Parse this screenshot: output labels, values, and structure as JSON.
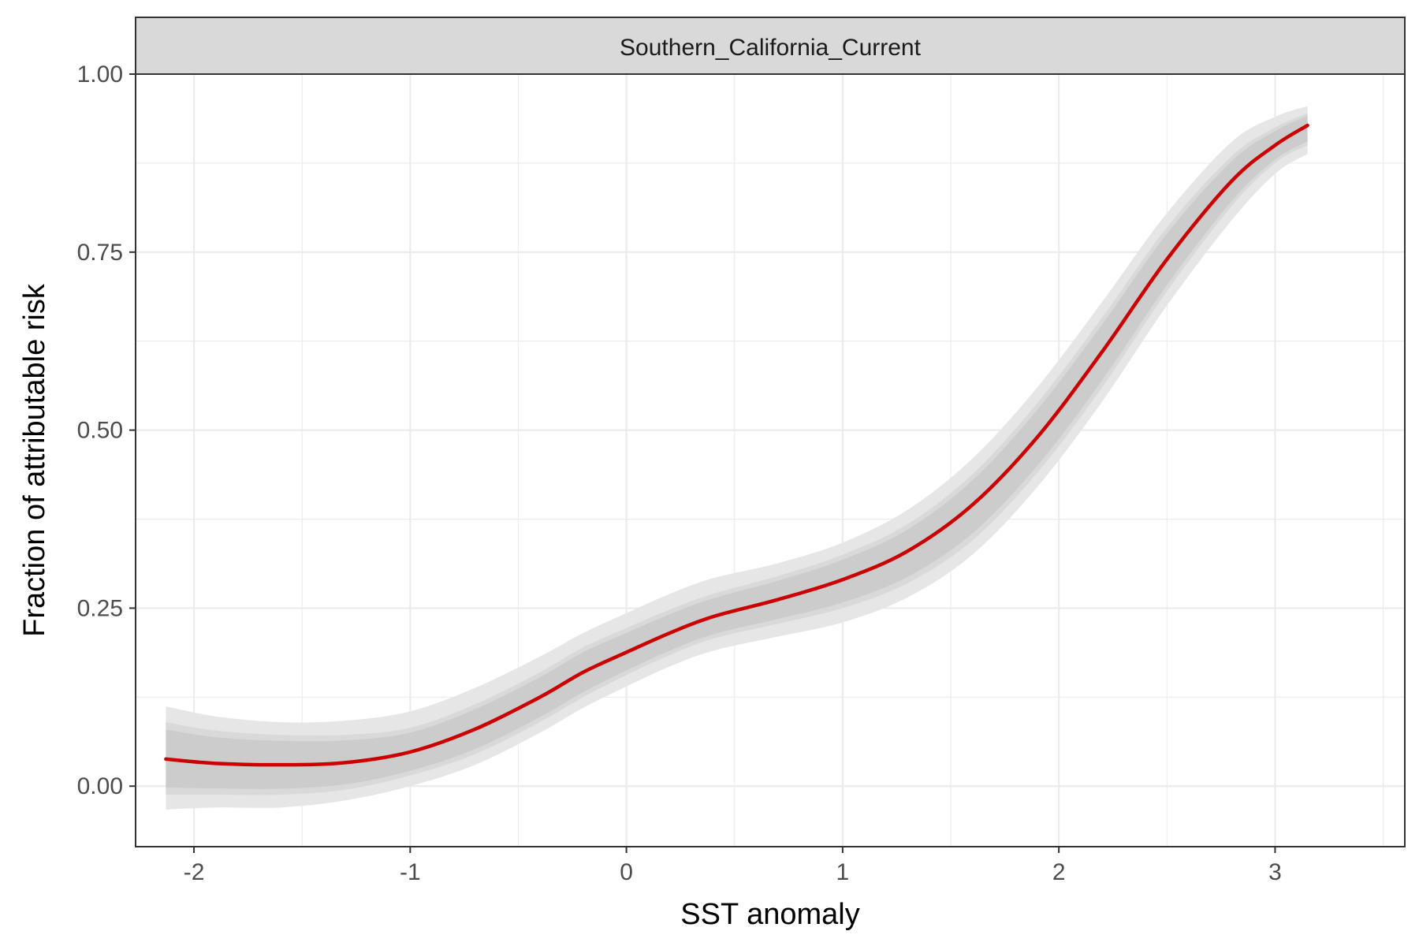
{
  "chart_data": {
    "type": "line",
    "facet_label": "Southern_California_Current",
    "xlabel": "SST anomaly",
    "ylabel": "Fraction of attributable risk",
    "xlim": [
      -2.27,
      3.6
    ],
    "ylim": [
      -0.085,
      1.0
    ],
    "x_ticks": [
      -2,
      -1,
      0,
      1,
      2,
      3
    ],
    "x_tick_labels": [
      "-2",
      "-1",
      "0",
      "1",
      "2",
      "3"
    ],
    "y_ticks": [
      0,
      0.25,
      0.5,
      0.75,
      1.0
    ],
    "y_tick_labels": [
      "0.00",
      "0.25",
      "0.50",
      "0.75",
      "1.00"
    ],
    "grid": true,
    "line_color": "#cc0000",
    "band_colors": [
      "#e6e6e6",
      "#d9d9d9",
      "#cccccc"
    ],
    "series": [
      {
        "x": [
          -2.13,
          -1.9,
          -1.6,
          -1.3,
          -1.0,
          -0.7,
          -0.4,
          -0.2,
          0.0,
          0.2,
          0.4,
          0.7,
          1.0,
          1.3,
          1.6,
          1.9,
          2.2,
          2.5,
          2.8,
          3.0,
          3.15
        ],
        "y": [
          0.038,
          0.032,
          0.03,
          0.033,
          0.048,
          0.08,
          0.125,
          0.16,
          0.188,
          0.215,
          0.238,
          0.262,
          0.29,
          0.33,
          0.395,
          0.49,
          0.61,
          0.74,
          0.85,
          0.9,
          0.928
        ],
        "band_outer": {
          "lower": [
            -0.033,
            -0.03,
            -0.03,
            -0.02,
            0.0,
            0.03,
            0.075,
            0.11,
            0.14,
            0.168,
            0.19,
            0.21,
            0.23,
            0.265,
            0.325,
            0.42,
            0.54,
            0.675,
            0.795,
            0.86,
            0.888
          ],
          "upper": [
            0.112,
            0.098,
            0.09,
            0.092,
            0.105,
            0.138,
            0.182,
            0.215,
            0.243,
            0.27,
            0.292,
            0.313,
            0.342,
            0.388,
            0.46,
            0.56,
            0.68,
            0.805,
            0.905,
            0.94,
            0.955
          ]
        },
        "band_inner": {
          "lower": [
            -0.012,
            -0.012,
            -0.012,
            -0.005,
            0.015,
            0.045,
            0.09,
            0.125,
            0.156,
            0.184,
            0.207,
            0.228,
            0.25,
            0.285,
            0.345,
            0.44,
            0.56,
            0.695,
            0.815,
            0.875,
            0.9
          ],
          "upper": [
            0.09,
            0.078,
            0.072,
            0.072,
            0.082,
            0.115,
            0.16,
            0.195,
            0.222,
            0.248,
            0.27,
            0.295,
            0.325,
            0.368,
            0.438,
            0.538,
            0.658,
            0.785,
            0.885,
            0.925,
            0.945
          ]
        }
      }
    ]
  }
}
